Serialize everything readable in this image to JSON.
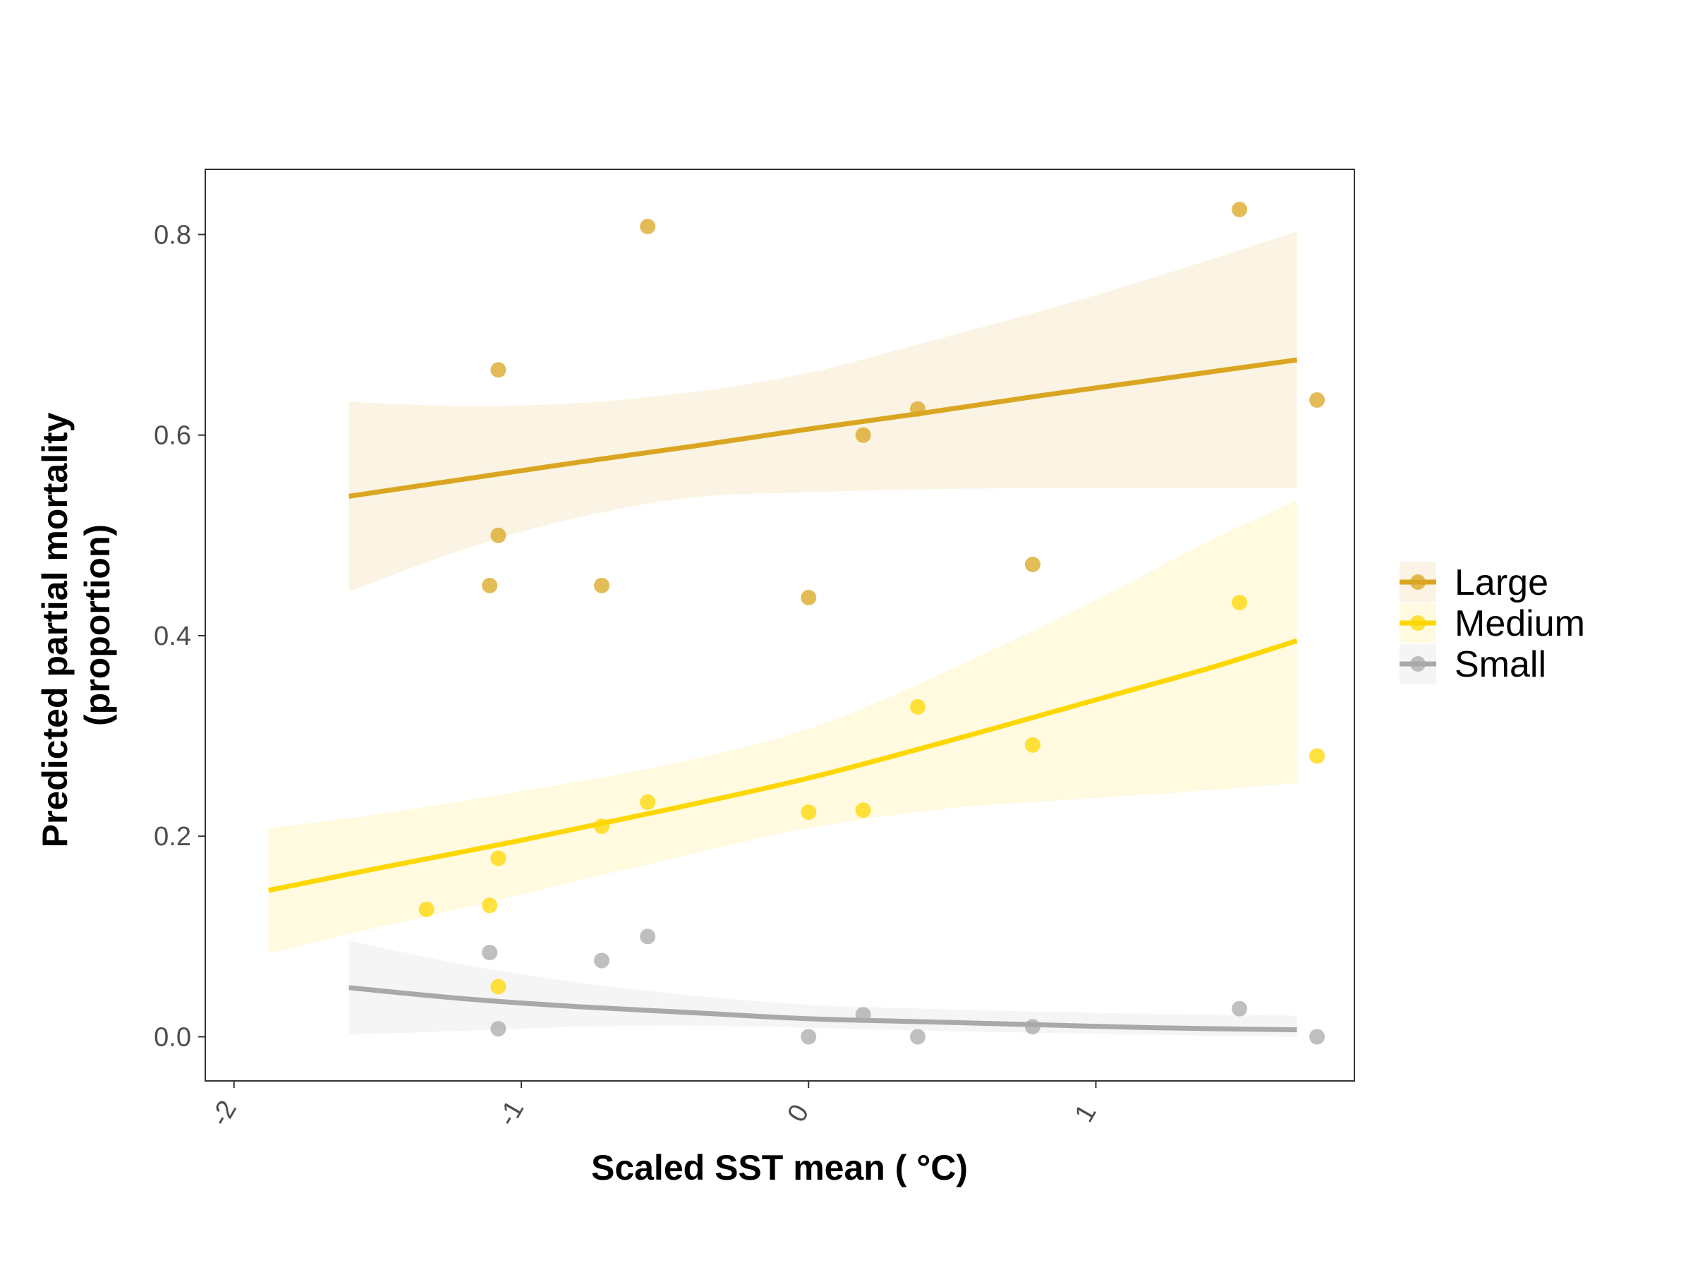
{
  "chart_data": {
    "type": "scatter",
    "title": "",
    "xlabel": "Scaled SST mean ( °C)",
    "ylabel_lines": [
      "Predicted partial mortality",
      "(proportion)"
    ],
    "xlim": [
      -2.1,
      1.9
    ],
    "ylim": [
      -0.044,
      0.865
    ],
    "x_ticks": [
      {
        "value": -2,
        "label": "-2"
      },
      {
        "value": -1,
        "label": "-1"
      },
      {
        "value": 0,
        "label": "0"
      },
      {
        "value": 1,
        "label": "1"
      }
    ],
    "y_ticks": [
      {
        "value": 0.0,
        "label": "0.0"
      },
      {
        "value": 0.2,
        "label": "0.2"
      },
      {
        "value": 0.4,
        "label": "0.4"
      },
      {
        "value": 0.6,
        "label": "0.6"
      },
      {
        "value": 0.8,
        "label": "0.8"
      }
    ],
    "grid": false,
    "legend_position": "right",
    "series": [
      {
        "name": "Large",
        "color": "#DAA520",
        "points": [
          {
            "x": -1.08,
            "y": 0.665
          },
          {
            "x": -1.08,
            "y": 0.5
          },
          {
            "x": -1.11,
            "y": 0.45
          },
          {
            "x": -0.72,
            "y": 0.45
          },
          {
            "x": -0.56,
            "y": 0.808
          },
          {
            "x": 0.0,
            "y": 0.438
          },
          {
            "x": 0.19,
            "y": 0.6
          },
          {
            "x": 0.38,
            "y": 0.626
          },
          {
            "x": 0.78,
            "y": 0.471
          },
          {
            "x": 1.5,
            "y": 0.825
          },
          {
            "x": 1.77,
            "y": 0.635
          }
        ],
        "fit": [
          {
            "x": -1.6,
            "y": 0.539,
            "lo": 0.444,
            "hi": 0.633
          },
          {
            "x": -1.2,
            "y": 0.556,
            "lo": 0.486,
            "hi": 0.629
          },
          {
            "x": -0.8,
            "y": 0.573,
            "lo": 0.518,
            "hi": 0.632
          },
          {
            "x": -0.4,
            "y": 0.589,
            "lo": 0.538,
            "hi": 0.643
          },
          {
            "x": 0.0,
            "y": 0.606,
            "lo": 0.543,
            "hi": 0.662
          },
          {
            "x": 0.4,
            "y": 0.622,
            "lo": 0.546,
            "hi": 0.692
          },
          {
            "x": 0.8,
            "y": 0.639,
            "lo": 0.547,
            "hi": 0.723
          },
          {
            "x": 1.2,
            "y": 0.655,
            "lo": 0.547,
            "hi": 0.757
          },
          {
            "x": 1.7,
            "y": 0.675,
            "lo": 0.547,
            "hi": 0.803
          }
        ]
      },
      {
        "name": "Medium",
        "color": "#FFD700",
        "points": [
          {
            "x": -1.33,
            "y": 0.127
          },
          {
            "x": -1.11,
            "y": 0.131
          },
          {
            "x": -1.08,
            "y": 0.178
          },
          {
            "x": -1.08,
            "y": 0.05
          },
          {
            "x": -0.72,
            "y": 0.21
          },
          {
            "x": -0.56,
            "y": 0.234
          },
          {
            "x": 0.0,
            "y": 0.224
          },
          {
            "x": 0.19,
            "y": 0.226
          },
          {
            "x": 0.38,
            "y": 0.329
          },
          {
            "x": 0.78,
            "y": 0.291
          },
          {
            "x": 1.5,
            "y": 0.433
          },
          {
            "x": 1.77,
            "y": 0.28
          }
        ],
        "fit": [
          {
            "x": -1.88,
            "y": 0.146,
            "lo": 0.083,
            "hi": 0.208
          },
          {
            "x": -1.5,
            "y": 0.168,
            "lo": 0.109,
            "hi": 0.222
          },
          {
            "x": -1.0,
            "y": 0.196,
            "lo": 0.142,
            "hi": 0.245
          },
          {
            "x": -0.5,
            "y": 0.226,
            "lo": 0.176,
            "hi": 0.271
          },
          {
            "x": 0.0,
            "y": 0.258,
            "lo": 0.208,
            "hi": 0.307
          },
          {
            "x": 0.5,
            "y": 0.296,
            "lo": 0.228,
            "hi": 0.367
          },
          {
            "x": 1.0,
            "y": 0.336,
            "lo": 0.238,
            "hi": 0.436
          },
          {
            "x": 1.4,
            "y": 0.368,
            "lo": 0.246,
            "hi": 0.495
          },
          {
            "x": 1.7,
            "y": 0.395,
            "lo": 0.253,
            "hi": 0.535
          }
        ]
      },
      {
        "name": "Small",
        "color": "#A9A9A9",
        "points": [
          {
            "x": -1.11,
            "y": 0.084
          },
          {
            "x": -1.08,
            "y": 0.008
          },
          {
            "x": -0.72,
            "y": 0.076
          },
          {
            "x": -0.56,
            "y": 0.1
          },
          {
            "x": 0.0,
            "y": 0.0
          },
          {
            "x": 0.19,
            "y": 0.022
          },
          {
            "x": 0.38,
            "y": 0.0
          },
          {
            "x": 0.78,
            "y": 0.01
          },
          {
            "x": 1.5,
            "y": 0.028
          },
          {
            "x": 1.77,
            "y": 0.0
          }
        ],
        "fit": [
          {
            "x": -1.6,
            "y": 0.049,
            "lo": 0.002,
            "hi": 0.096
          },
          {
            "x": -1.2,
            "y": 0.038,
            "lo": 0.006,
            "hi": 0.072
          },
          {
            "x": -0.8,
            "y": 0.03,
            "lo": 0.01,
            "hi": 0.054
          },
          {
            "x": -0.4,
            "y": 0.024,
            "lo": 0.011,
            "hi": 0.041
          },
          {
            "x": 0.0,
            "y": 0.018,
            "lo": 0.009,
            "hi": 0.032
          },
          {
            "x": 0.4,
            "y": 0.015,
            "lo": 0.006,
            "hi": 0.028
          },
          {
            "x": 0.8,
            "y": 0.012,
            "lo": 0.004,
            "hi": 0.025
          },
          {
            "x": 1.2,
            "y": 0.009,
            "lo": 0.002,
            "hi": 0.023
          },
          {
            "x": 1.7,
            "y": 0.007,
            "lo": 0.0,
            "hi": 0.021
          }
        ]
      }
    ]
  }
}
